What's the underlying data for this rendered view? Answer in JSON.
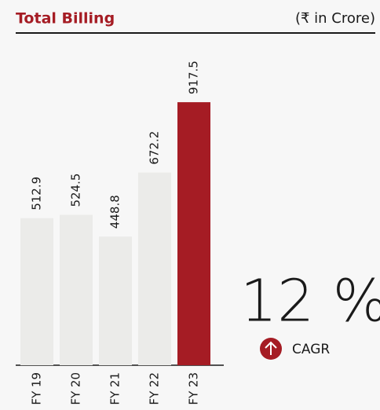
{
  "chart_data": {
    "type": "bar",
    "title": "Total Billing",
    "subtitle": "(₹ in Crore)",
    "categories": [
      "FY 19",
      "FY 20",
      "FY 21",
      "FY 22",
      "FY 23"
    ],
    "values": [
      512.9,
      524.5,
      448.8,
      672.2,
      917.5
    ],
    "colors": [
      "#ebebe9",
      "#ebebe9",
      "#ebebe9",
      "#ebebe9",
      "#a51c24"
    ],
    "stat": "12 %",
    "stat_label": "CAGR"
  }
}
